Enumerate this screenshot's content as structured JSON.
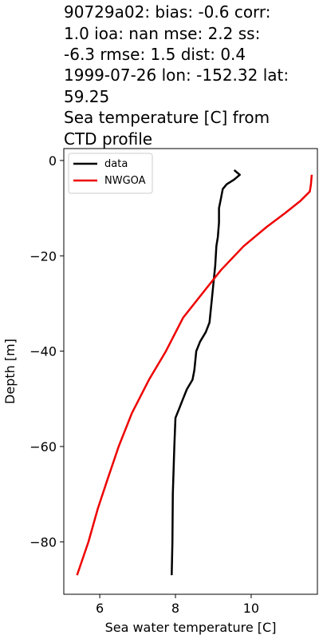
{
  "chart_data": {
    "type": "line",
    "title_lines": [
      "90729a02: bias: -0.6  corr:",
      "1.0  ioa: nan  mse: 2.2  ss:",
      "-6.3  rmse: 1.5  dist: 0.4",
      "1999-07-26 lon: -152.32 lat:",
      "59.25",
      "Sea temperature [C] from",
      "CTD profile"
    ],
    "xlabel": "Sea water temperature [C]",
    "ylabel": "Depth [m]",
    "xlim": [
      5.05,
      11.75
    ],
    "ylim": [
      -91,
      2.5
    ],
    "xticks": [
      6,
      8,
      10
    ],
    "yticks": [
      0,
      -20,
      -40,
      -60,
      -80
    ],
    "xtick_labels": [
      "6",
      "8",
      "10"
    ],
    "ytick_labels": [
      "0",
      "−20",
      "−40",
      "−60",
      "−80"
    ],
    "legend_position": "upper-left",
    "series": [
      {
        "name": "data",
        "color": "#000000",
        "points": [
          [
            9.55,
            -2
          ],
          [
            9.7,
            -3
          ],
          [
            9.55,
            -4
          ],
          [
            9.35,
            -5
          ],
          [
            9.25,
            -6
          ],
          [
            9.2,
            -8
          ],
          [
            9.15,
            -10
          ],
          [
            9.15,
            -13
          ],
          [
            9.12,
            -16
          ],
          [
            9.08,
            -18
          ],
          [
            9.05,
            -22
          ],
          [
            9.0,
            -26
          ],
          [
            8.95,
            -30
          ],
          [
            8.9,
            -34
          ],
          [
            8.8,
            -36
          ],
          [
            8.65,
            -38
          ],
          [
            8.55,
            -40
          ],
          [
            8.5,
            -44
          ],
          [
            8.45,
            -46
          ],
          [
            8.3,
            -48
          ],
          [
            8.2,
            -50
          ],
          [
            8.1,
            -52
          ],
          [
            8.0,
            -54
          ],
          [
            7.97,
            -60
          ],
          [
            7.93,
            -70
          ],
          [
            7.92,
            -80
          ],
          [
            7.9,
            -87
          ]
        ]
      },
      {
        "name": "NWGOA",
        "color": "#ee0000",
        "points": [
          [
            11.6,
            -3
          ],
          [
            11.58,
            -5
          ],
          [
            11.55,
            -6.5
          ],
          [
            11.3,
            -8.5
          ],
          [
            10.9,
            -11
          ],
          [
            10.4,
            -14
          ],
          [
            9.8,
            -18
          ],
          [
            9.2,
            -23
          ],
          [
            8.7,
            -28
          ],
          [
            8.2,
            -33
          ],
          [
            7.75,
            -40
          ],
          [
            7.3,
            -46
          ],
          [
            6.85,
            -53
          ],
          [
            6.5,
            -60
          ],
          [
            6.2,
            -67
          ],
          [
            5.95,
            -73
          ],
          [
            5.7,
            -80
          ],
          [
            5.4,
            -87
          ]
        ]
      }
    ]
  }
}
